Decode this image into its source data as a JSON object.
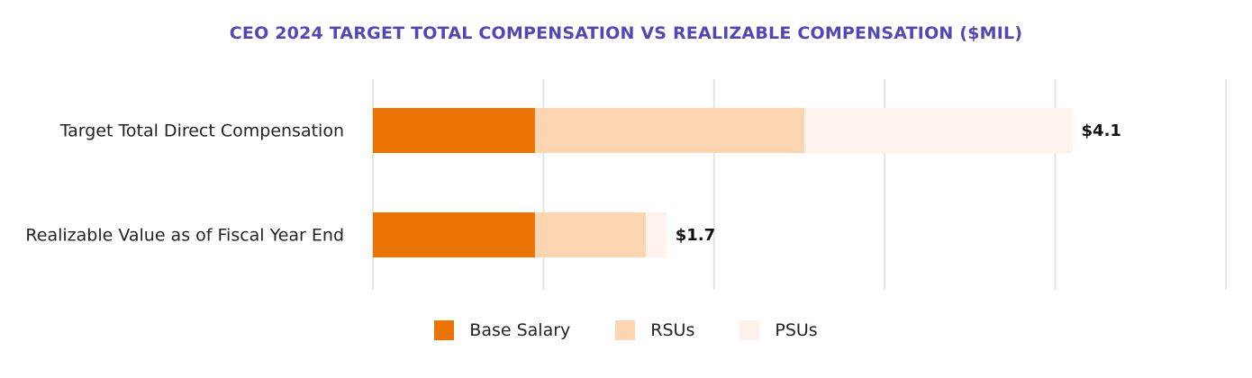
{
  "chart_data": {
    "type": "bar",
    "orientation": "horizontal",
    "stacked": true,
    "title": "CEO 2024 TARGET TOTAL COMPENSATION VS REALIZABLE COMPENSATION ($MIL)",
    "categories": [
      "Target Total Direct Compensation",
      "Realizable Value as of Fiscal Year End"
    ],
    "series": [
      {
        "name": "Base Salary",
        "values": [
          0.95,
          0.95
        ],
        "color": "#EB7304"
      },
      {
        "name": "RSUs",
        "values": [
          1.58,
          0.65
        ],
        "color": "#FDD5B1"
      },
      {
        "name": "PSUs",
        "values": [
          1.57,
          0.12
        ],
        "color": "#FDF2EC"
      }
    ],
    "totals": [
      "$4.1",
      "$1.7"
    ],
    "xlim": [
      0,
      5
    ],
    "grid": true,
    "legend_position": "bottom-center",
    "title_color": "#5147B8",
    "grid_color": "#E5E5E5"
  }
}
